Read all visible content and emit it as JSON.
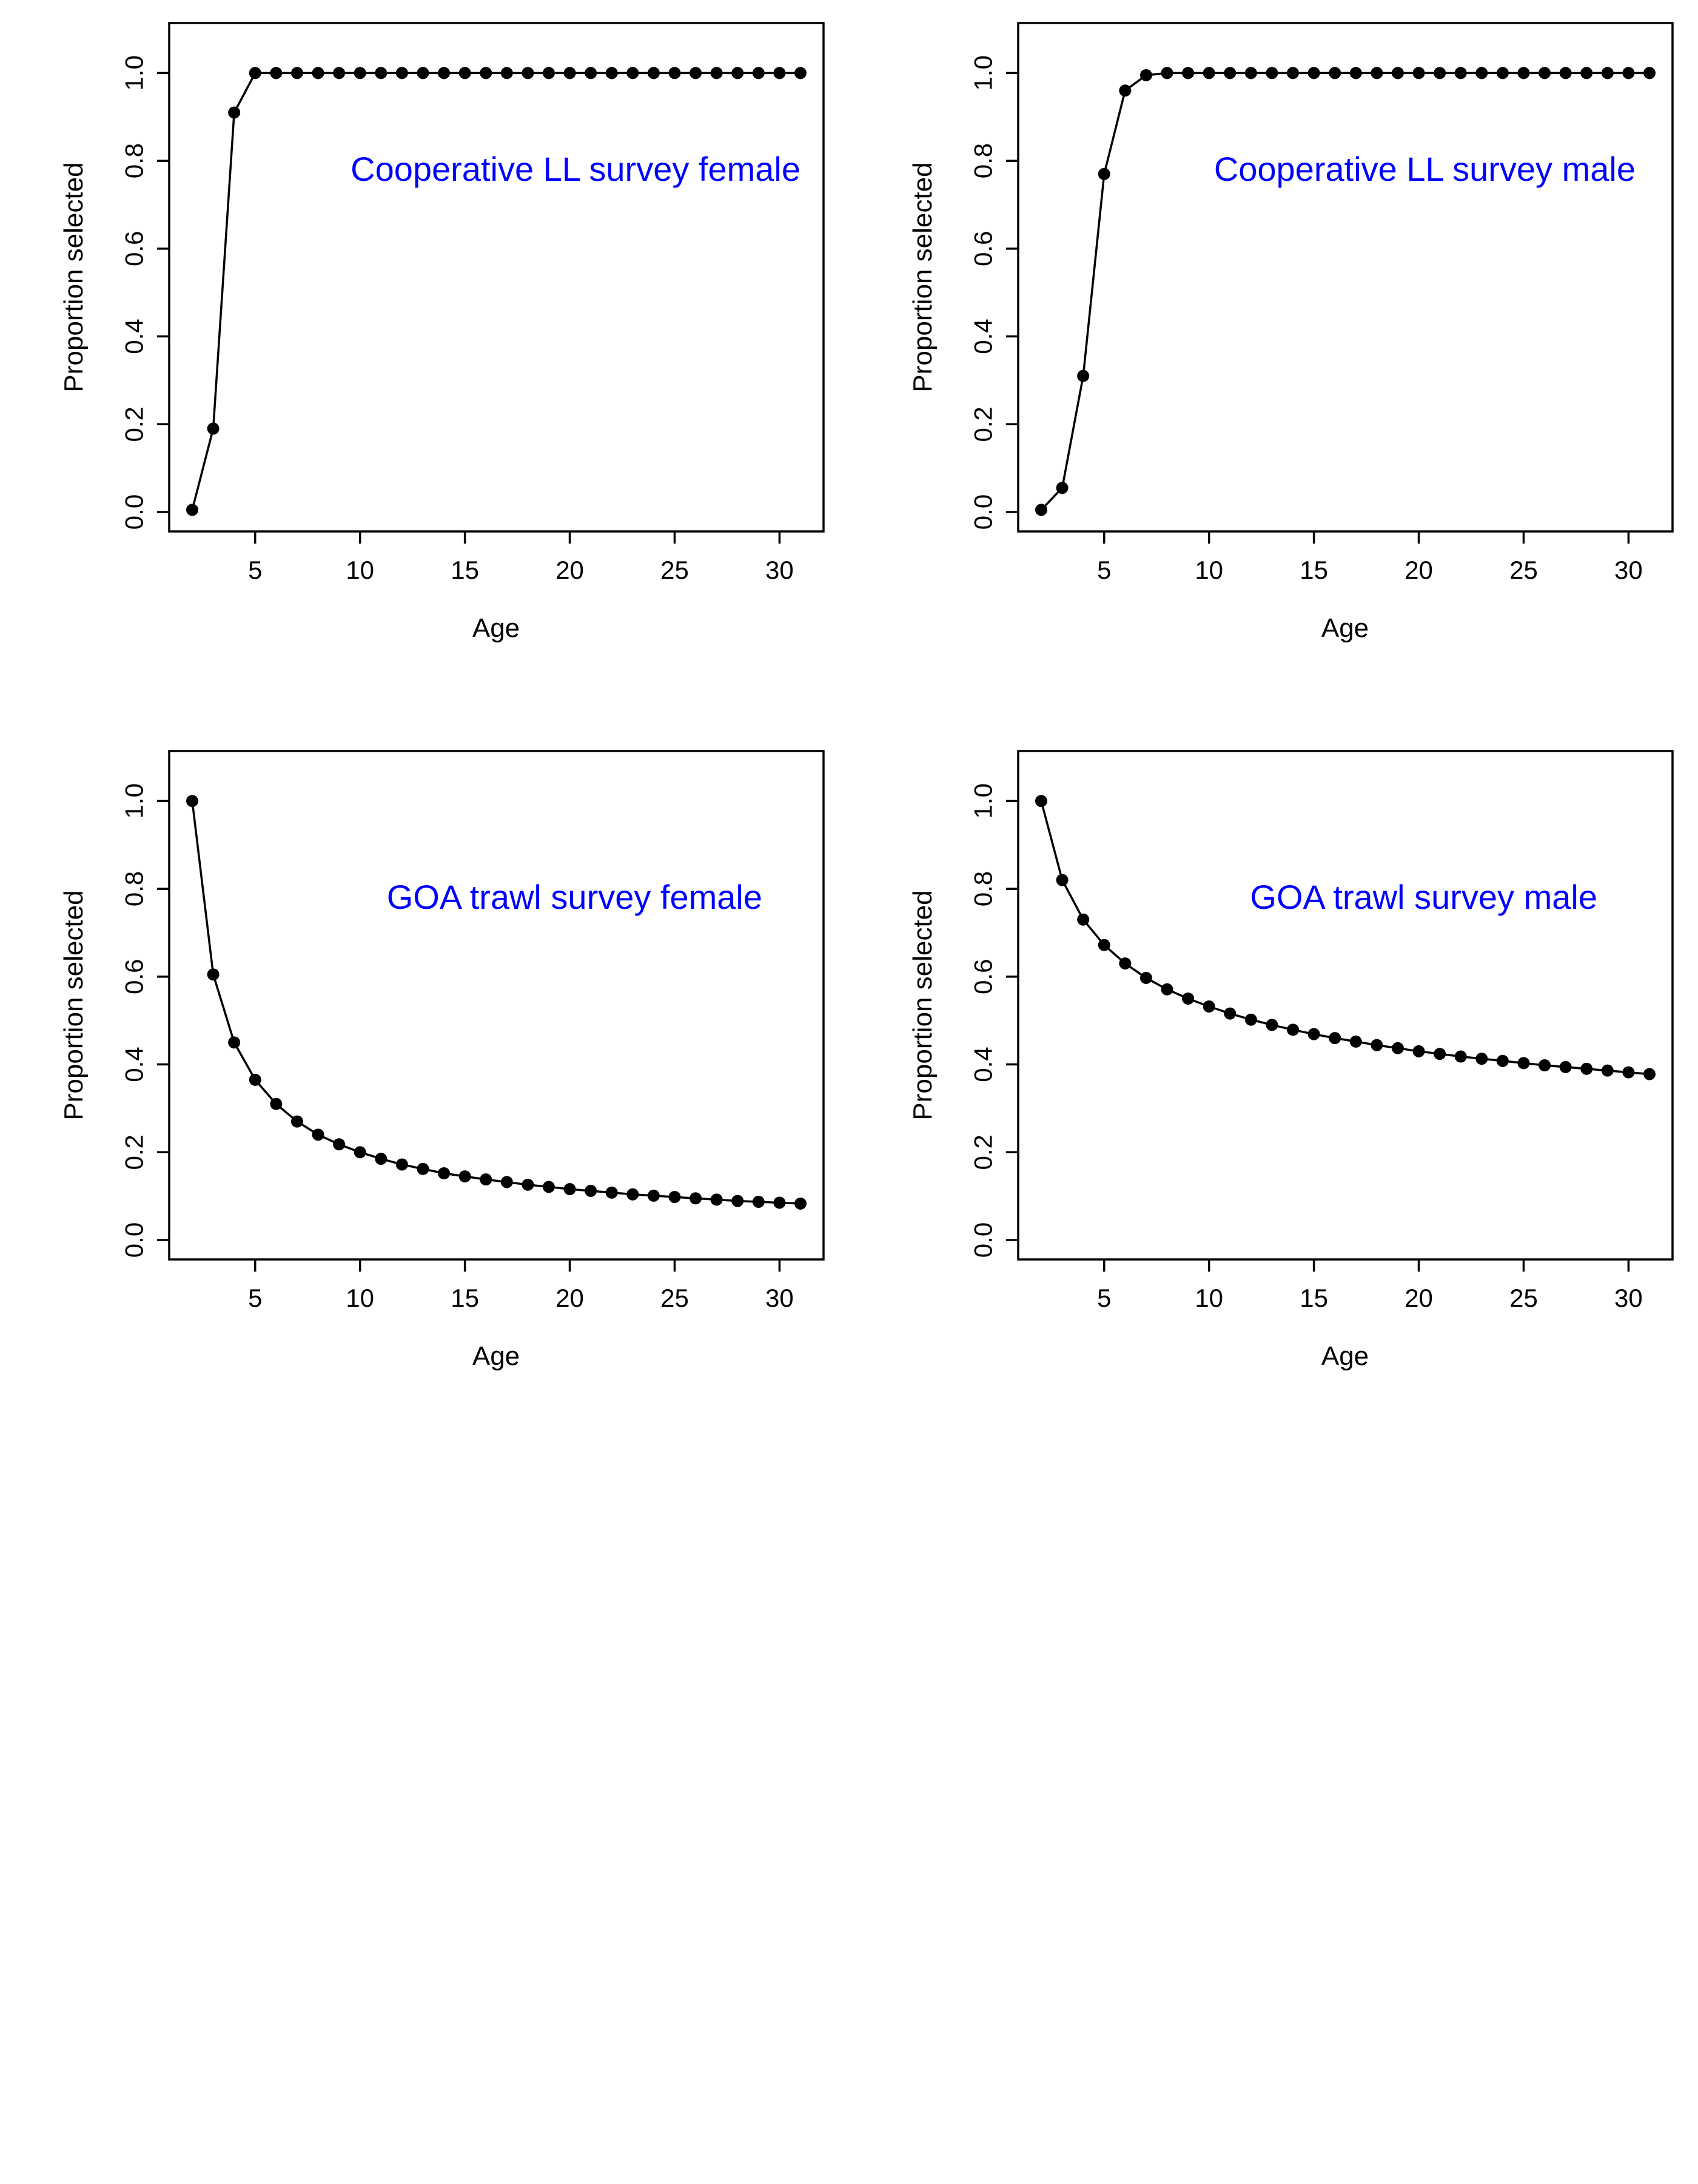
{
  "figure": {
    "background": "#ffffff",
    "axis_color": "#000000",
    "series_color": "#000000",
    "annotation_color": "#0000ff"
  },
  "chart_data": [
    {
      "type": "line",
      "panel": "top-left",
      "markers": true,
      "annotation": "Cooperative LL survey female",
      "annotation_position": "top-right",
      "xlabel": "Age",
      "ylabel": "Proportion selected",
      "xlim": [
        2,
        31
      ],
      "ylim": [
        0,
        1.1
      ],
      "xticks": [
        5,
        10,
        15,
        20,
        25,
        30
      ],
      "yticks": [
        0.0,
        0.2,
        0.4,
        0.6,
        0.8,
        1.0
      ],
      "ytick_labels": [
        "0.0",
        "0.2",
        "0.4",
        "0.6",
        "0.8",
        "1.0"
      ],
      "grid": false,
      "x": [
        2,
        3,
        4,
        5,
        6,
        7,
        8,
        9,
        10,
        11,
        12,
        13,
        14,
        15,
        16,
        17,
        18,
        19,
        20,
        21,
        22,
        23,
        24,
        25,
        26,
        27,
        28,
        29,
        30,
        31
      ],
      "y": [
        0.005,
        0.19,
        0.91,
        1,
        1,
        1,
        1,
        1,
        1,
        1,
        1,
        1,
        1,
        1,
        1,
        1,
        1,
        1,
        1,
        1,
        1,
        1,
        1,
        1,
        1,
        1,
        1,
        1,
        1,
        1
      ]
    },
    {
      "type": "line",
      "panel": "top-right",
      "markers": true,
      "annotation": "Cooperative LL survey male",
      "annotation_position": "top-right",
      "xlabel": "Age",
      "ylabel": "Proportion selected",
      "xlim": [
        2,
        31
      ],
      "ylim": [
        0,
        1.1
      ],
      "xticks": [
        5,
        10,
        15,
        20,
        25,
        30
      ],
      "yticks": [
        0.0,
        0.2,
        0.4,
        0.6,
        0.8,
        1.0
      ],
      "ytick_labels": [
        "0.0",
        "0.2",
        "0.4",
        "0.6",
        "0.8",
        "1.0"
      ],
      "grid": false,
      "x": [
        2,
        3,
        4,
        5,
        6,
        7,
        8,
        9,
        10,
        11,
        12,
        13,
        14,
        15,
        16,
        17,
        18,
        19,
        20,
        21,
        22,
        23,
        24,
        25,
        26,
        27,
        28,
        29,
        30,
        31
      ],
      "y": [
        0.005,
        0.055,
        0.31,
        0.77,
        0.96,
        0.995,
        1,
        1,
        1,
        1,
        1,
        1,
        1,
        1,
        1,
        1,
        1,
        1,
        1,
        1,
        1,
        1,
        1,
        1,
        1,
        1,
        1,
        1,
        1,
        1
      ]
    },
    {
      "type": "line",
      "panel": "bottom-left",
      "markers": true,
      "annotation": "GOA trawl survey female",
      "annotation_position": "top-right",
      "xlabel": "Age",
      "ylabel": "Proportion selected",
      "xlim": [
        2,
        31
      ],
      "ylim": [
        0,
        1.1
      ],
      "xticks": [
        5,
        10,
        15,
        20,
        25,
        30
      ],
      "yticks": [
        0.0,
        0.2,
        0.4,
        0.6,
        0.8,
        1.0
      ],
      "ytick_labels": [
        "0.0",
        "0.2",
        "0.4",
        "0.6",
        "0.8",
        "1.0"
      ],
      "grid": false,
      "x": [
        2,
        3,
        4,
        5,
        6,
        7,
        8,
        9,
        10,
        11,
        12,
        13,
        14,
        15,
        16,
        17,
        18,
        19,
        20,
        21,
        22,
        23,
        24,
        25,
        26,
        27,
        28,
        29,
        30,
        31
      ],
      "y": [
        1.0,
        0.605,
        0.45,
        0.365,
        0.31,
        0.27,
        0.24,
        0.218,
        0.2,
        0.185,
        0.172,
        0.162,
        0.152,
        0.145,
        0.138,
        0.132,
        0.126,
        0.121,
        0.116,
        0.112,
        0.108,
        0.104,
        0.101,
        0.098,
        0.095,
        0.092,
        0.089,
        0.087,
        0.085,
        0.083
      ]
    },
    {
      "type": "line",
      "panel": "bottom-right",
      "markers": true,
      "annotation": "GOA trawl survey male",
      "annotation_position": "top-right",
      "xlabel": "Age",
      "ylabel": "Proportion selected",
      "xlim": [
        2,
        31
      ],
      "ylim": [
        0,
        1.1
      ],
      "xticks": [
        5,
        10,
        15,
        20,
        25,
        30
      ],
      "yticks": [
        0.0,
        0.2,
        0.4,
        0.6,
        0.8,
        1.0
      ],
      "ytick_labels": [
        "0.0",
        "0.2",
        "0.4",
        "0.6",
        "0.8",
        "1.0"
      ],
      "grid": false,
      "x": [
        2,
        3,
        4,
        5,
        6,
        7,
        8,
        9,
        10,
        11,
        12,
        13,
        14,
        15,
        16,
        17,
        18,
        19,
        20,
        21,
        22,
        23,
        24,
        25,
        26,
        27,
        28,
        29,
        30,
        31
      ],
      "y": [
        1.0,
        0.82,
        0.73,
        0.672,
        0.63,
        0.597,
        0.571,
        0.55,
        0.532,
        0.516,
        0.502,
        0.49,
        0.479,
        0.469,
        0.46,
        0.452,
        0.444,
        0.437,
        0.43,
        0.424,
        0.418,
        0.413,
        0.408,
        0.403,
        0.398,
        0.394,
        0.39,
        0.386,
        0.382,
        0.378
      ]
    }
  ]
}
